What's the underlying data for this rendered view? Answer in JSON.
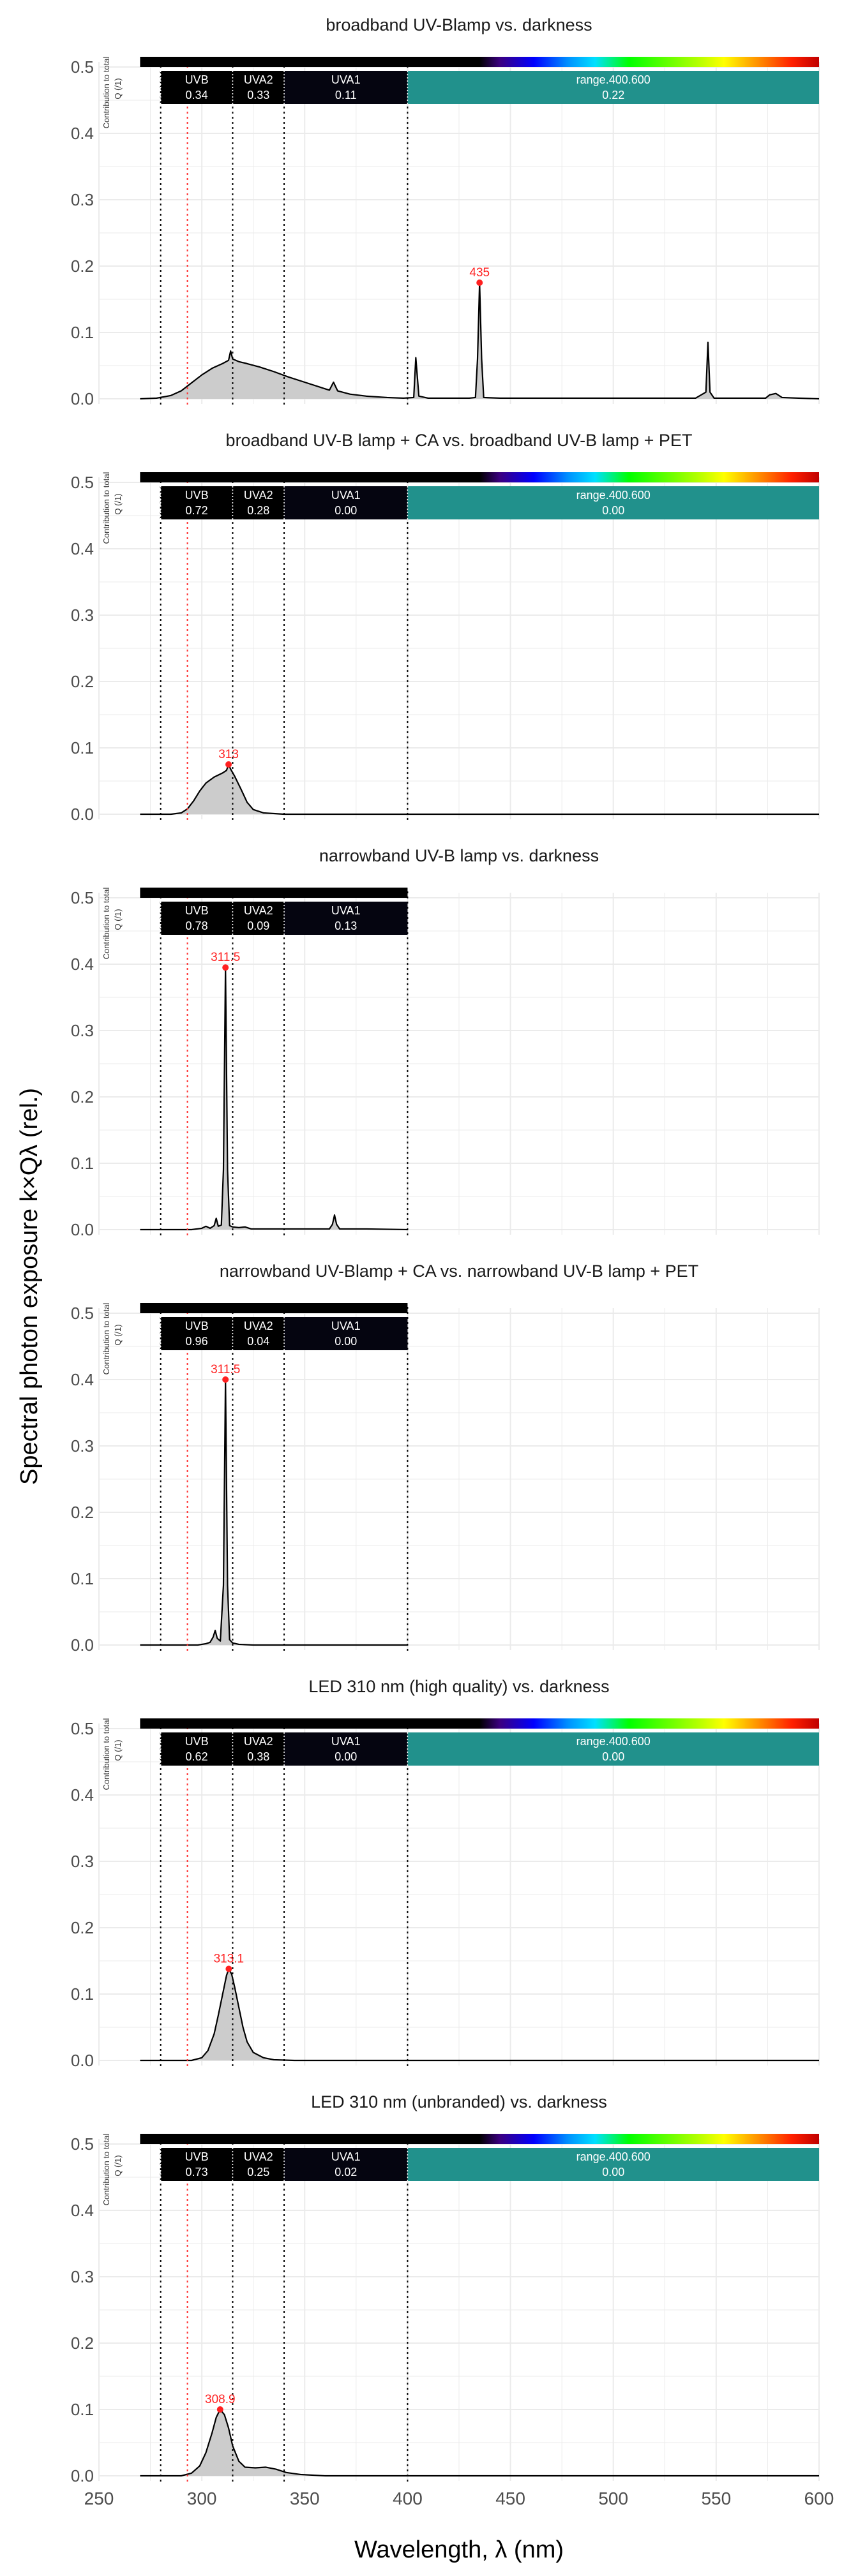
{
  "chart_data": {
    "type": "line",
    "ylabel": "Spectral photon exposure k×Qλ (rel.)",
    "xlabel": "Wavelength, λ (nm)",
    "xlim": [
      250,
      600
    ],
    "ylim": [
      0,
      0.5
    ],
    "x_ticks": [
      "250",
      "300",
      "350",
      "400",
      "450",
      "500",
      "550",
      "600"
    ],
    "y_ticks": [
      "0.0",
      "0.1",
      "0.2",
      "0.3",
      "0.4",
      "0.5"
    ],
    "vlines_black": [
      280,
      315,
      340,
      400
    ],
    "vline_red": 293,
    "contribution_label": "Contribution to total",
    "q_label": "Q (/1)",
    "grid": true,
    "panels": [
      {
        "title": "broadband UV-Blamp vs. darkness",
        "band_end": 600,
        "bands": [
          {
            "name": "UVB",
            "value": "0.34",
            "from": 280,
            "to": 315
          },
          {
            "name": "UVA2",
            "value": "0.33",
            "from": 315,
            "to": 340
          },
          {
            "name": "UVA1",
            "value": "0.11",
            "from": 340,
            "to": 400
          },
          {
            "name": "range.400.600",
            "value": "0.22",
            "from": 400,
            "to": 600
          }
        ],
        "peak": {
          "label": "435",
          "x": 435,
          "y": 0.175
        },
        "spectrum": [
          [
            270,
            0
          ],
          [
            278,
            0.001
          ],
          [
            285,
            0.005
          ],
          [
            290,
            0.012
          ],
          [
            295,
            0.024
          ],
          [
            300,
            0.036
          ],
          [
            305,
            0.046
          ],
          [
            310,
            0.053
          ],
          [
            313,
            0.058
          ],
          [
            314,
            0.072
          ],
          [
            315,
            0.06
          ],
          [
            318,
            0.056
          ],
          [
            322,
            0.053
          ],
          [
            328,
            0.048
          ],
          [
            335,
            0.041
          ],
          [
            342,
            0.033
          ],
          [
            350,
            0.025
          ],
          [
            358,
            0.017
          ],
          [
            362,
            0.013
          ],
          [
            364,
            0.025
          ],
          [
            366,
            0.012
          ],
          [
            372,
            0.007
          ],
          [
            380,
            0.004
          ],
          [
            390,
            0.002
          ],
          [
            398,
            0.001
          ],
          [
            403,
            0.002
          ],
          [
            404,
            0.062
          ],
          [
            405.5,
            0.004
          ],
          [
            410,
            0.001
          ],
          [
            430,
            0.001
          ],
          [
            433,
            0.002
          ],
          [
            434,
            0.06
          ],
          [
            435,
            0.175
          ],
          [
            436,
            0.06
          ],
          [
            437,
            0.002
          ],
          [
            445,
            0.001
          ],
          [
            540,
            0.001
          ],
          [
            545,
            0.01
          ],
          [
            546,
            0.085
          ],
          [
            547,
            0.01
          ],
          [
            549,
            0.001
          ],
          [
            574,
            0.001
          ],
          [
            576,
            0.006
          ],
          [
            579,
            0.008
          ],
          [
            582,
            0.002
          ],
          [
            590,
            0.001
          ],
          [
            600,
            0
          ]
        ]
      },
      {
        "title": "broadband UV-B lamp + CA vs. broadband UV-B lamp + PET",
        "band_end": 600,
        "bands": [
          {
            "name": "UVB",
            "value": "0.72",
            "from": 280,
            "to": 315
          },
          {
            "name": "UVA2",
            "value": "0.28",
            "from": 315,
            "to": 340
          },
          {
            "name": "UVA1",
            "value": "0.00",
            "from": 340,
            "to": 400
          },
          {
            "name": "range.400.600",
            "value": "0.00",
            "from": 400,
            "to": 600
          }
        ],
        "peak": {
          "label": "313",
          "x": 313,
          "y": 0.075
        },
        "spectrum": [
          [
            270,
            0
          ],
          [
            285,
            0
          ],
          [
            290,
            0.002
          ],
          [
            293,
            0.008
          ],
          [
            296,
            0.02
          ],
          [
            299,
            0.035
          ],
          [
            302,
            0.047
          ],
          [
            306,
            0.056
          ],
          [
            310,
            0.062
          ],
          [
            312,
            0.066
          ],
          [
            313,
            0.075
          ],
          [
            314,
            0.068
          ],
          [
            316,
            0.057
          ],
          [
            319,
            0.038
          ],
          [
            322,
            0.018
          ],
          [
            325,
            0.007
          ],
          [
            330,
            0.002
          ],
          [
            340,
            0
          ],
          [
            600,
            0
          ]
        ]
      },
      {
        "title": "narrowband UV-B lamp vs. darkness",
        "band_end": 400,
        "bands": [
          {
            "name": "UVB",
            "value": "0.78",
            "from": 280,
            "to": 315
          },
          {
            "name": "UVA2",
            "value": "0.09",
            "from": 315,
            "to": 340
          },
          {
            "name": "UVA1",
            "value": "0.13",
            "from": 340,
            "to": 400
          }
        ],
        "peak": {
          "label": "311.5",
          "x": 311.5,
          "y": 0.395
        },
        "spectrum": [
          [
            270,
            0
          ],
          [
            295,
            0
          ],
          [
            300,
            0.002
          ],
          [
            302,
            0.005
          ],
          [
            304,
            0.002
          ],
          [
            306,
            0.006
          ],
          [
            307,
            0.017
          ],
          [
            308,
            0.005
          ],
          [
            309.5,
            0.007
          ],
          [
            310.5,
            0.09
          ],
          [
            311.5,
            0.395
          ],
          [
            312.5,
            0.09
          ],
          [
            313.5,
            0.006
          ],
          [
            315,
            0.004
          ],
          [
            318,
            0.003
          ],
          [
            321,
            0.004
          ],
          [
            324,
            0.001
          ],
          [
            330,
            0.001
          ],
          [
            362,
            0.001
          ],
          [
            363.5,
            0.008
          ],
          [
            364.5,
            0.022
          ],
          [
            365.5,
            0.008
          ],
          [
            367,
            0.001
          ],
          [
            380,
            0.001
          ],
          [
            400,
            0
          ]
        ]
      },
      {
        "title": "narrowband UV-Blamp + CA vs. narrowband UV-B lamp + PET",
        "band_end": 400,
        "bands": [
          {
            "name": "UVB",
            "value": "0.96",
            "from": 280,
            "to": 315
          },
          {
            "name": "UVA2",
            "value": "0.04",
            "from": 315,
            "to": 340
          },
          {
            "name": "UVA1",
            "value": "0.00",
            "from": 340,
            "to": 400
          }
        ],
        "peak": {
          "label": "311.5",
          "x": 311.5,
          "y": 0.4
        },
        "spectrum": [
          [
            270,
            0
          ],
          [
            298,
            0
          ],
          [
            302,
            0.002
          ],
          [
            304,
            0.004
          ],
          [
            305.5,
            0.012
          ],
          [
            306.5,
            0.022
          ],
          [
            307.5,
            0.01
          ],
          [
            309,
            0.006
          ],
          [
            310.5,
            0.09
          ],
          [
            311.5,
            0.4
          ],
          [
            312.5,
            0.09
          ],
          [
            313.5,
            0.008
          ],
          [
            315,
            0.003
          ],
          [
            318,
            0.001
          ],
          [
            325,
            0
          ],
          [
            400,
            0
          ]
        ]
      },
      {
        "title": "LED 310 nm (high quality) vs. darkness",
        "band_end": 600,
        "bands": [
          {
            "name": "UVB",
            "value": "0.62",
            "from": 280,
            "to": 315
          },
          {
            "name": "UVA2",
            "value": "0.38",
            "from": 315,
            "to": 340
          },
          {
            "name": "UVA1",
            "value": "0.00",
            "from": 340,
            "to": 400
          },
          {
            "name": "range.400.600",
            "value": "0.00",
            "from": 400,
            "to": 600
          }
        ],
        "peak": {
          "label": "313.1",
          "x": 313.1,
          "y": 0.138
        },
        "spectrum": [
          [
            270,
            0
          ],
          [
            295,
            0
          ],
          [
            300,
            0.004
          ],
          [
            303,
            0.015
          ],
          [
            306,
            0.04
          ],
          [
            308,
            0.068
          ],
          [
            310,
            0.098
          ],
          [
            312,
            0.128
          ],
          [
            313.1,
            0.138
          ],
          [
            314.5,
            0.13
          ],
          [
            316,
            0.11
          ],
          [
            318,
            0.08
          ],
          [
            320,
            0.05
          ],
          [
            322,
            0.028
          ],
          [
            325,
            0.012
          ],
          [
            330,
            0.004
          ],
          [
            335,
            0.001
          ],
          [
            345,
            0
          ],
          [
            600,
            0
          ]
        ]
      },
      {
        "title": "LED 310 nm (unbranded) vs. darkness",
        "band_end": 600,
        "bands": [
          {
            "name": "UVB",
            "value": "0.73",
            "from": 280,
            "to": 315
          },
          {
            "name": "UVA2",
            "value": "0.25",
            "from": 315,
            "to": 340
          },
          {
            "name": "UVA1",
            "value": "0.02",
            "from": 340,
            "to": 400
          },
          {
            "name": "range.400.600",
            "value": "0.00",
            "from": 400,
            "to": 600
          }
        ],
        "peak": {
          "label": "308.9",
          "x": 308.9,
          "y": 0.1
        },
        "spectrum": [
          [
            270,
            0
          ],
          [
            290,
            0
          ],
          [
            295,
            0.004
          ],
          [
            299,
            0.015
          ],
          [
            302,
            0.035
          ],
          [
            305,
            0.065
          ],
          [
            307,
            0.088
          ],
          [
            308.9,
            0.1
          ],
          [
            311,
            0.092
          ],
          [
            313,
            0.072
          ],
          [
            315,
            0.045
          ],
          [
            318,
            0.022
          ],
          [
            321,
            0.013
          ],
          [
            326,
            0.012
          ],
          [
            331,
            0.013
          ],
          [
            336,
            0.01
          ],
          [
            341,
            0.005
          ],
          [
            348,
            0.002
          ],
          [
            360,
            0
          ],
          [
            600,
            0
          ]
        ]
      }
    ]
  }
}
